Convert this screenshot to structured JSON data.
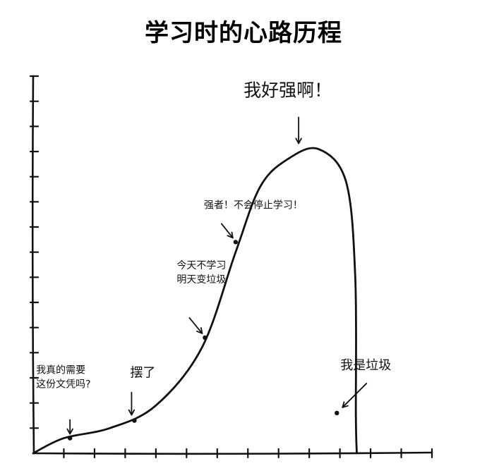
{
  "title": "学习时的心路历程",
  "chart_data": {
    "type": "line",
    "title": "学习时的心路历程",
    "xlabel": "",
    "ylabel": "",
    "xlim": [
      0,
      13
    ],
    "ylim": [
      0,
      15
    ],
    "x_ticks": 13,
    "y_ticks": 15,
    "grid": false,
    "series": [
      {
        "values": [
          {
            "x": 0.0,
            "y": 0.0
          },
          {
            "x": 1.0,
            "y": 0.6
          },
          {
            "x": 2.5,
            "y": 1.0
          },
          {
            "x": 4.0,
            "y": 1.9
          },
          {
            "x": 5.5,
            "y": 4.2
          },
          {
            "x": 6.6,
            "y": 8.0
          },
          {
            "x": 7.4,
            "y": 10.6
          },
          {
            "x": 8.3,
            "y": 11.7
          },
          {
            "x": 9.3,
            "y": 12.1
          },
          {
            "x": 10.2,
            "y": 10.8
          },
          {
            "x": 10.5,
            "y": 7.0
          },
          {
            "x": 10.52,
            "y": 1.5
          },
          {
            "x": 10.55,
            "y": 0.0
          }
        ]
      }
    ],
    "annotations": [
      {
        "lines": [
          "我真的需要",
          "这份文凭吗?"
        ],
        "x": 1.2,
        "y": 0.6,
        "size": "small"
      },
      {
        "lines": [
          "摆了"
        ],
        "x": 3.3,
        "y": 1.3,
        "size": "mid"
      },
      {
        "lines": [
          "今天不学习",
          "明天变垃圾"
        ],
        "x": 5.6,
        "y": 4.6,
        "size": "small"
      },
      {
        "lines": [
          "强者！不会停止学习！"
        ],
        "x": 6.6,
        "y": 8.4,
        "size": "small"
      },
      {
        "lines": [
          "我好强啊！"
        ],
        "x": 8.7,
        "y": 12.1,
        "size": "big"
      },
      {
        "lines": [
          "我是垃圾"
        ],
        "x": 9.9,
        "y": 1.6,
        "size": "mid"
      }
    ]
  }
}
